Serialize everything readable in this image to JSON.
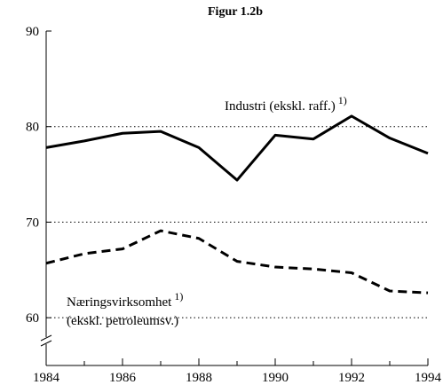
{
  "chart_data": {
    "type": "line",
    "title": "Figur 1.2b",
    "x": [
      1984,
      1985,
      1986,
      1987,
      1988,
      1989,
      1990,
      1991,
      1992,
      1993,
      1994
    ],
    "series": [
      {
        "name": "Industri (ekskl. raff.)",
        "color": "#000000",
        "dash": "solid",
        "values": [
          77.8,
          78.5,
          79.3,
          79.5,
          77.8,
          74.4,
          79.1,
          78.7,
          81.1,
          78.8,
          77.2
        ]
      },
      {
        "name": "Næringsvirksomhet",
        "color": "#000000",
        "dash": "dashed",
        "values": [
          65.7,
          66.7,
          67.2,
          69.1,
          68.3,
          65.9,
          65.3,
          65.1,
          64.7,
          62.8,
          62.6
        ]
      }
    ],
    "annotations": [
      {
        "text": "Industri (ekskl. raff.)",
        "note": "1)"
      },
      {
        "text": "Næringsvirksomhet",
        "note": "1)"
      },
      {
        "text": "(ekskl. petroleumsv.)"
      }
    ],
    "xlim": [
      1984,
      1994
    ],
    "xticks": [
      1984,
      1986,
      1988,
      1990,
      1992,
      1994
    ],
    "ylim": [
      55,
      90
    ],
    "yticks": [
      60,
      70,
      80,
      90
    ],
    "grid": true
  }
}
